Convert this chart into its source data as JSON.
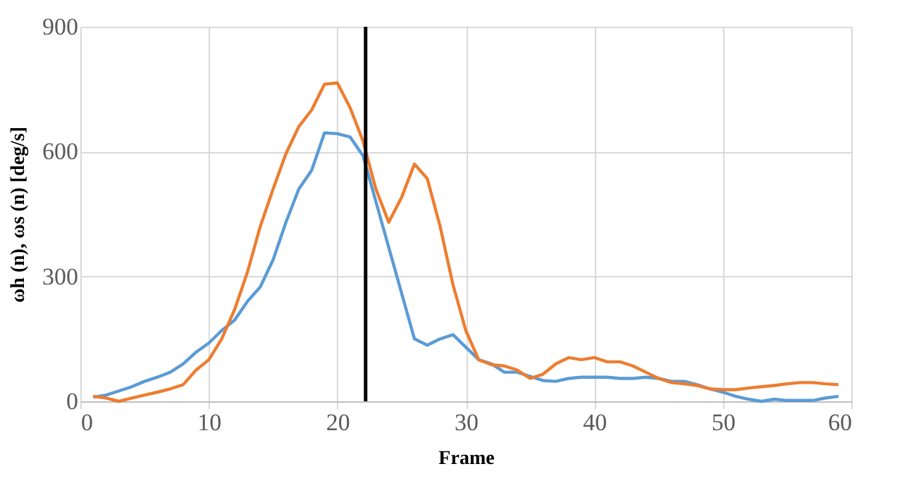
{
  "chart_data": {
    "type": "line",
    "xlabel": "Frame",
    "ylabel": "ωh (n), ωs (n) [deg/s]",
    "x": [
      1,
      2,
      3,
      4,
      5,
      6,
      7,
      8,
      9,
      10,
      11,
      12,
      13,
      14,
      15,
      16,
      17,
      18,
      19,
      20,
      21,
      22,
      23,
      24,
      25,
      26,
      27,
      28,
      29,
      30,
      31,
      32,
      33,
      34,
      35,
      36,
      37,
      38,
      39,
      40,
      41,
      42,
      43,
      44,
      45,
      46,
      47,
      48,
      49,
      50,
      51,
      52,
      53,
      54,
      55,
      56,
      57,
      58,
      59
    ],
    "series": [
      {
        "color": "#5b9bd5",
        "values": [
          10,
          15,
          25,
          35,
          48,
          58,
          70,
          90,
          118,
          140,
          170,
          195,
          240,
          275,
          340,
          430,
          510,
          555,
          645,
          643,
          635,
          590,
          480,
          370,
          260,
          150,
          135,
          150,
          160,
          130,
          100,
          90,
          70,
          70,
          60,
          50,
          48,
          55,
          58,
          58,
          58,
          55,
          55,
          58,
          55,
          48,
          48,
          40,
          30,
          22,
          12,
          5,
          0,
          5,
          2,
          2,
          2,
          8,
          12
        ]
      },
      {
        "color": "#ed7d31",
        "values": [
          12,
          8,
          0,
          8,
          15,
          22,
          30,
          40,
          75,
          100,
          150,
          220,
          310,
          420,
          510,
          595,
          660,
          700,
          762,
          765,
          705,
          625,
          510,
          430,
          490,
          570,
          535,
          420,
          280,
          170,
          100,
          88,
          85,
          75,
          55,
          65,
          90,
          105,
          100,
          105,
          95,
          95,
          85,
          70,
          55,
          45,
          42,
          38,
          30,
          28,
          28,
          32,
          35,
          38,
          42,
          45,
          45,
          42,
          40
        ]
      }
    ],
    "xlim": [
      0,
      60
    ],
    "xticks": [
      0,
      10,
      20,
      30,
      40,
      50,
      60
    ],
    "ylim": [
      0,
      900
    ],
    "yticks": [
      0,
      300,
      600,
      900
    ],
    "grid": true,
    "marker": "none",
    "line_style": "solid",
    "ref_lines": [
      {
        "axis": "x",
        "value": 22.2,
        "color": "#000000"
      }
    ]
  }
}
